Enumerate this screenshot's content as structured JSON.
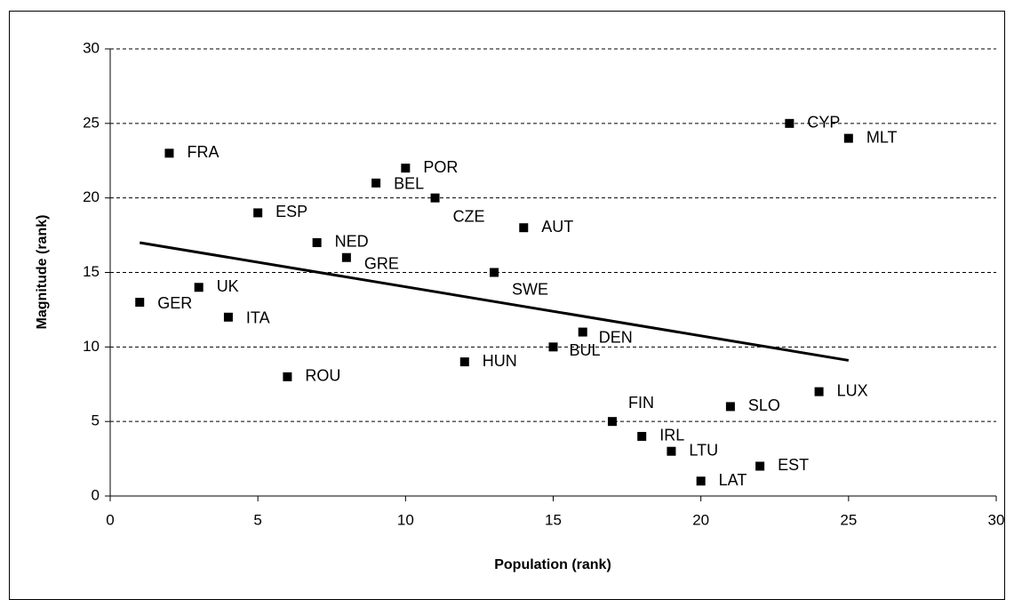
{
  "chart_data": {
    "type": "scatter",
    "x_label": "Population (rank)",
    "y_label": "Magnitude (rank)",
    "labels": [
      "GER",
      "FRA",
      "UK",
      "ITA",
      "ESP",
      "ROU",
      "NED",
      "GRE",
      "BEL",
      "POR",
      "CZE",
      "HUN",
      "SWE",
      "AUT",
      "BUL",
      "DEN",
      "FIN",
      "IRL",
      "LTU",
      "LAT",
      "SLO",
      "EST",
      "CYP",
      "LUX",
      "MLT"
    ],
    "x": [
      1,
      2,
      3,
      4,
      5,
      6,
      7,
      8,
      9,
      10,
      11,
      12,
      13,
      14,
      15,
      16,
      17,
      18,
      19,
      20,
      21,
      22,
      23,
      24,
      25
    ],
    "values": [
      13,
      23,
      14,
      12,
      19,
      8,
      17,
      16,
      21,
      22,
      20,
      9,
      15,
      18,
      10,
      11,
      5,
      4,
      3,
      1,
      6,
      2,
      25,
      7,
      24
    ],
    "color": "#000000",
    "trendline": {
      "x": [
        1,
        25
      ],
      "values": [
        17,
        9.1
      ]
    },
    "xlim": [
      0,
      30
    ],
    "xticks": [
      0,
      5,
      10,
      15,
      20,
      25,
      30
    ],
    "ylim": [
      0,
      30
    ],
    "yticks": [
      0,
      5,
      10,
      15,
      20,
      25,
      30
    ],
    "grid": true
  }
}
